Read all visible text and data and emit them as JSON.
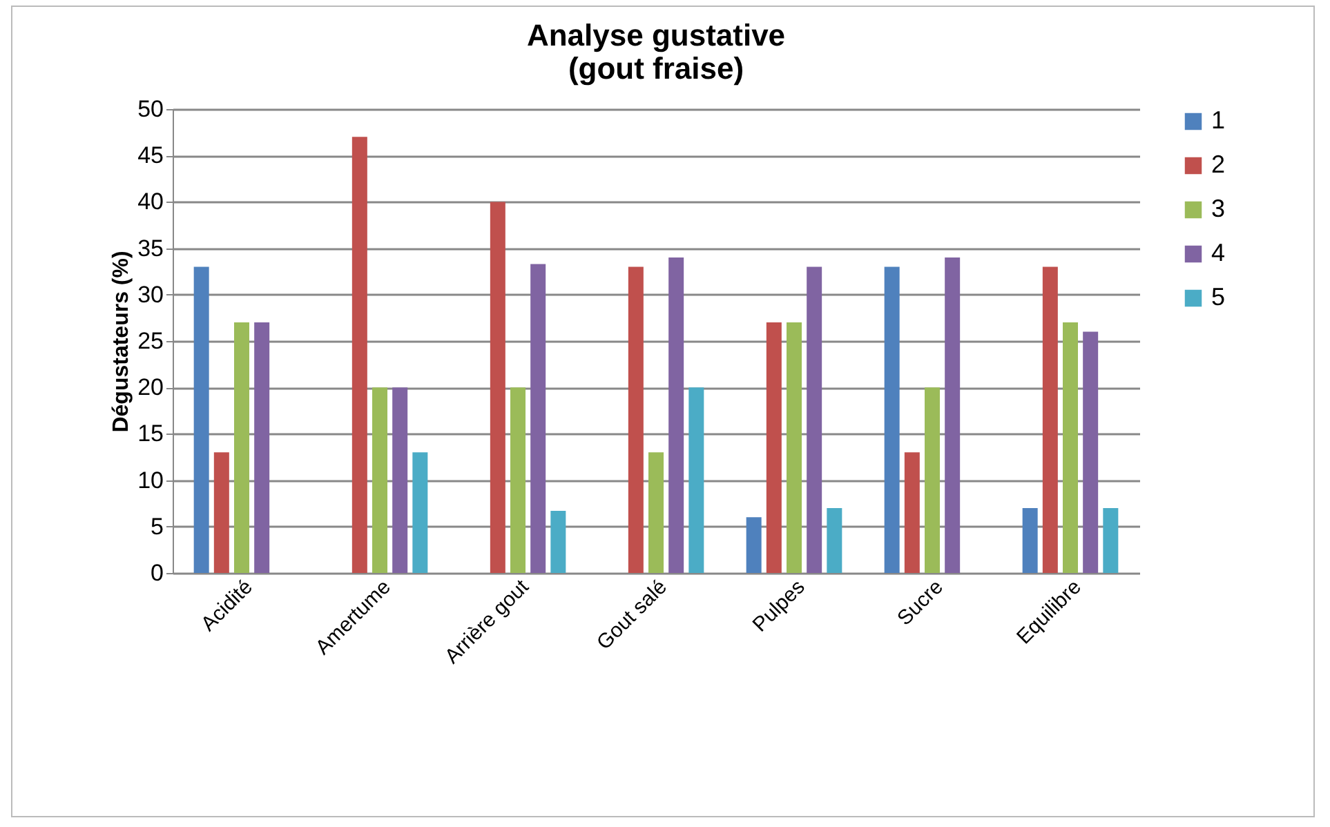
{
  "chart_data": {
    "type": "bar",
    "title": "Analyse gustative\n(gout fraise)",
    "ylabel": "Dégustateurs (%)",
    "categories": [
      "Acidité",
      "Amertume",
      "Arrière gout",
      "Gout salé",
      "Pulpes",
      "Sucre",
      "Equilibre"
    ],
    "series": [
      {
        "name": "1",
        "color": "#4f81bd",
        "values": [
          33,
          null,
          null,
          null,
          6,
          33,
          7
        ]
      },
      {
        "name": "2",
        "color": "#c0504d",
        "values": [
          13,
          47,
          40,
          33,
          27,
          13,
          33
        ]
      },
      {
        "name": "3",
        "color": "#9bbb59",
        "values": [
          27,
          20,
          20,
          13,
          27,
          20,
          27
        ]
      },
      {
        "name": "4",
        "color": "#8064a2",
        "values": [
          27,
          20,
          33.3,
          34,
          33,
          34,
          26
        ]
      },
      {
        "name": "5",
        "color": "#4bacc6",
        "values": [
          null,
          13,
          6.7,
          20,
          7,
          null,
          7
        ]
      }
    ],
    "ylim": [
      0,
      50
    ],
    "yticks": [
      0,
      5,
      10,
      15,
      20,
      25,
      30,
      35,
      40,
      45,
      50
    ],
    "grid": "y",
    "legend": "right"
  }
}
